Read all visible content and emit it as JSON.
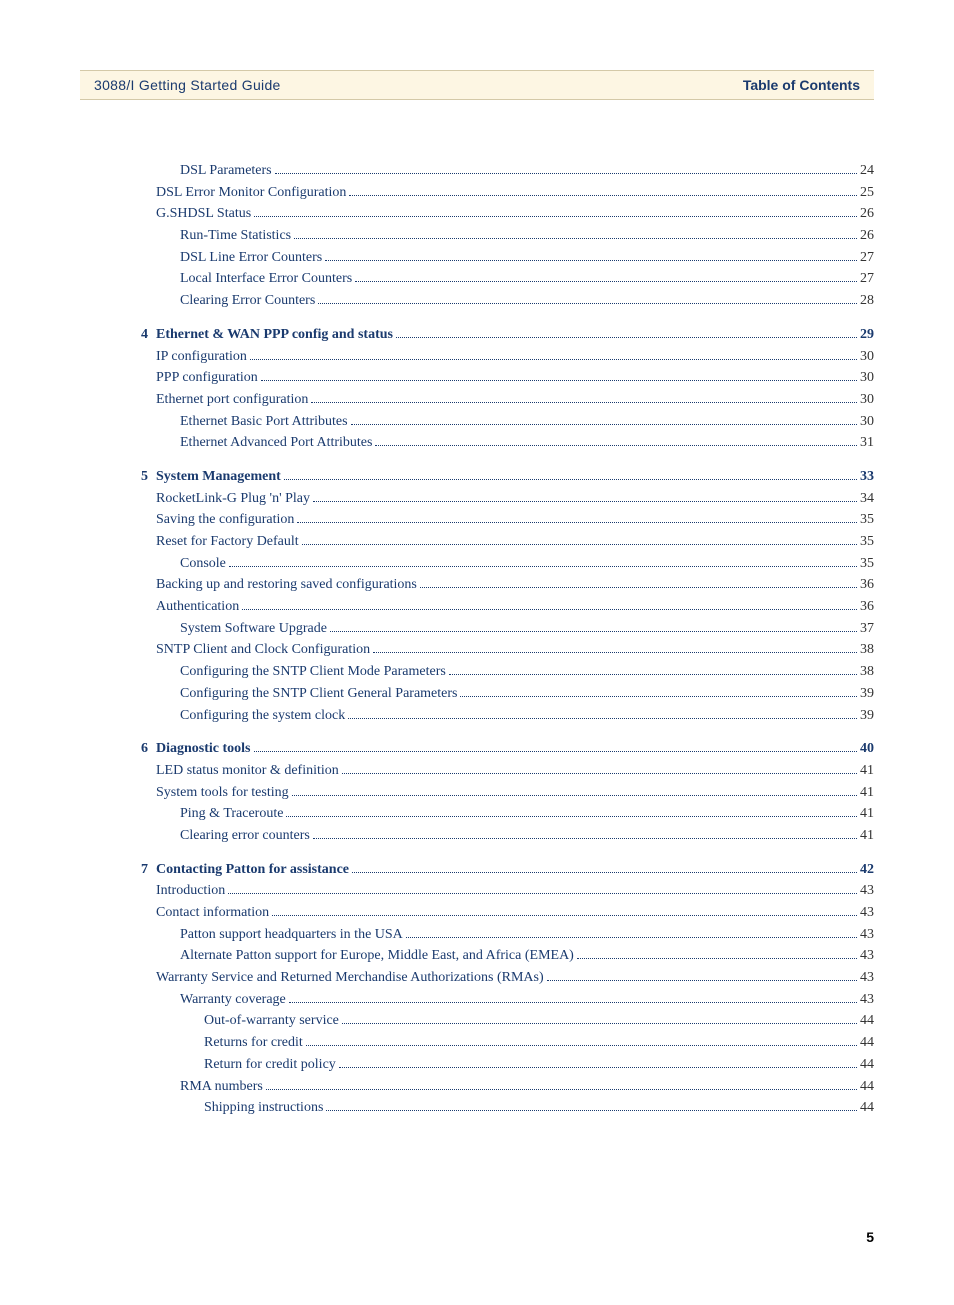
{
  "header": {
    "left": "3088/I Getting Started Guide",
    "right": "Table of Contents"
  },
  "page_number": "5",
  "colors": {
    "link": "#1a3a6e",
    "banner_bg": "#fdf6e3",
    "banner_border": "#d4c9a8",
    "page_text": "#333333"
  },
  "typography": {
    "body_font": "Georgia, serif",
    "header_font": "Arial, sans-serif",
    "toc_fontsize_pt": 11,
    "header_fontsize_pt": 11
  },
  "toc": [
    {
      "label": "DSL Parameters",
      "page": "24",
      "indent": 2,
      "chapter": false,
      "num": ""
    },
    {
      "label": "DSL Error Monitor Configuration",
      "page": "25",
      "indent": 1,
      "chapter": false,
      "num": ""
    },
    {
      "label": "G.SHDSL Status",
      "page": "26",
      "indent": 1,
      "chapter": false,
      "num": ""
    },
    {
      "label": "Run-Time Statistics",
      "page": "26",
      "indent": 2,
      "chapter": false,
      "num": ""
    },
    {
      "label": "DSL Line Error Counters",
      "page": "27",
      "indent": 2,
      "chapter": false,
      "num": ""
    },
    {
      "label": "Local Interface Error Counters",
      "page": "27",
      "indent": 2,
      "chapter": false,
      "num": ""
    },
    {
      "label": "Clearing Error Counters",
      "page": "28",
      "indent": 2,
      "chapter": false,
      "num": ""
    },
    {
      "label": "Ethernet & WAN PPP config and status",
      "page": "29",
      "indent": 0,
      "chapter": true,
      "num": "4"
    },
    {
      "label": "IP configuration",
      "page": "30",
      "indent": 1,
      "chapter": false,
      "num": ""
    },
    {
      "label": "PPP configuration",
      "page": "30",
      "indent": 1,
      "chapter": false,
      "num": ""
    },
    {
      "label": "Ethernet port configuration",
      "page": "30",
      "indent": 1,
      "chapter": false,
      "num": ""
    },
    {
      "label": "Ethernet Basic Port Attributes",
      "page": "30",
      "indent": 2,
      "chapter": false,
      "num": ""
    },
    {
      "label": "Ethernet Advanced Port Attributes",
      "page": "31",
      "indent": 2,
      "chapter": false,
      "num": ""
    },
    {
      "label": "System Management",
      "page": "33",
      "indent": 0,
      "chapter": true,
      "num": "5"
    },
    {
      "label": "RocketLink-G Plug 'n' Play",
      "page": "34",
      "indent": 1,
      "chapter": false,
      "num": ""
    },
    {
      "label": "Saving the configuration",
      "page": "35",
      "indent": 1,
      "chapter": false,
      "num": ""
    },
    {
      "label": "Reset for Factory Default",
      "page": "35",
      "indent": 1,
      "chapter": false,
      "num": ""
    },
    {
      "label": "Console",
      "page": "35",
      "indent": 2,
      "chapter": false,
      "num": ""
    },
    {
      "label": "Backing up and restoring saved configurations",
      "page": "36",
      "indent": 1,
      "chapter": false,
      "num": ""
    },
    {
      "label": "Authentication",
      "page": "36",
      "indent": 1,
      "chapter": false,
      "num": ""
    },
    {
      "label": "System Software Upgrade",
      "page": "37",
      "indent": 2,
      "chapter": false,
      "num": ""
    },
    {
      "label": "SNTP Client and Clock Configuration",
      "page": "38",
      "indent": 1,
      "chapter": false,
      "num": ""
    },
    {
      "label": "Configuring the SNTP Client Mode Parameters",
      "page": "38",
      "indent": 2,
      "chapter": false,
      "num": ""
    },
    {
      "label": "Configuring the SNTP Client General Parameters",
      "page": "39",
      "indent": 2,
      "chapter": false,
      "num": ""
    },
    {
      "label": "Configuring the system clock",
      "page": "39",
      "indent": 2,
      "chapter": false,
      "num": ""
    },
    {
      "label": "Diagnostic tools",
      "page": "40",
      "indent": 0,
      "chapter": true,
      "num": "6"
    },
    {
      "label": "LED status monitor & definition",
      "page": "41",
      "indent": 1,
      "chapter": false,
      "num": ""
    },
    {
      "label": "System tools for testing",
      "page": "41",
      "indent": 1,
      "chapter": false,
      "num": ""
    },
    {
      "label": "Ping & Traceroute",
      "page": "41",
      "indent": 2,
      "chapter": false,
      "num": ""
    },
    {
      "label": "Clearing error counters",
      "page": "41",
      "indent": 2,
      "chapter": false,
      "num": ""
    },
    {
      "label": "Contacting Patton for assistance",
      "page": "42",
      "indent": 0,
      "chapter": true,
      "num": "7"
    },
    {
      "label": "Introduction",
      "page": "43",
      "indent": 1,
      "chapter": false,
      "num": ""
    },
    {
      "label": "Contact information",
      "page": "43",
      "indent": 1,
      "chapter": false,
      "num": ""
    },
    {
      "label": "Patton support headquarters in the USA",
      "page": "43",
      "indent": 2,
      "chapter": false,
      "num": ""
    },
    {
      "label": "Alternate Patton support for Europe, Middle East, and Africa (EMEA)",
      "page": "43",
      "indent": 2,
      "chapter": false,
      "num": ""
    },
    {
      "label": "Warranty Service and Returned Merchandise Authorizations (RMAs)",
      "page": "43",
      "indent": 1,
      "chapter": false,
      "num": ""
    },
    {
      "label": "Warranty coverage",
      "page": "43",
      "indent": 2,
      "chapter": false,
      "num": ""
    },
    {
      "label": "Out-of-warranty service",
      "page": "44",
      "indent": 3,
      "chapter": false,
      "num": ""
    },
    {
      "label": "Returns for credit",
      "page": "44",
      "indent": 3,
      "chapter": false,
      "num": ""
    },
    {
      "label": "Return for credit policy",
      "page": "44",
      "indent": 3,
      "chapter": false,
      "num": ""
    },
    {
      "label": "RMA numbers",
      "page": "44",
      "indent": 2,
      "chapter": false,
      "num": ""
    },
    {
      "label": "Shipping instructions",
      "page": "44",
      "indent": 3,
      "chapter": false,
      "num": ""
    }
  ]
}
